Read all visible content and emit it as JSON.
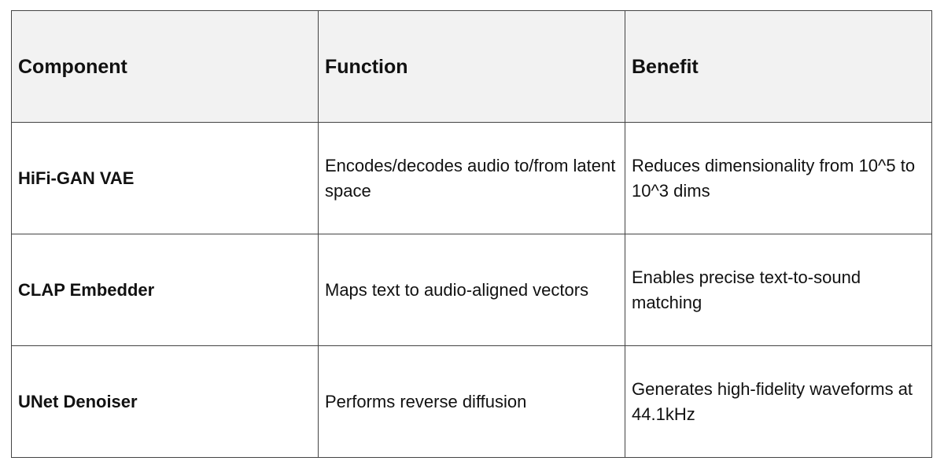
{
  "table": {
    "headers": [
      "Component",
      "Function",
      "Benefit"
    ],
    "rows": [
      [
        "HiFi-GAN VAE",
        "Encodes/decodes audio to/from latent space",
        "Reduces dimensionality from 10^5 to 10^3 dims"
      ],
      [
        "CLAP Embedder",
        "Maps text to audio-aligned vectors",
        "Enables precise text-to-sound matching"
      ],
      [
        "UNet Denoiser",
        "Performs reverse diffusion",
        "Generates high-fidelity waveforms at 44.1kHz"
      ]
    ]
  }
}
